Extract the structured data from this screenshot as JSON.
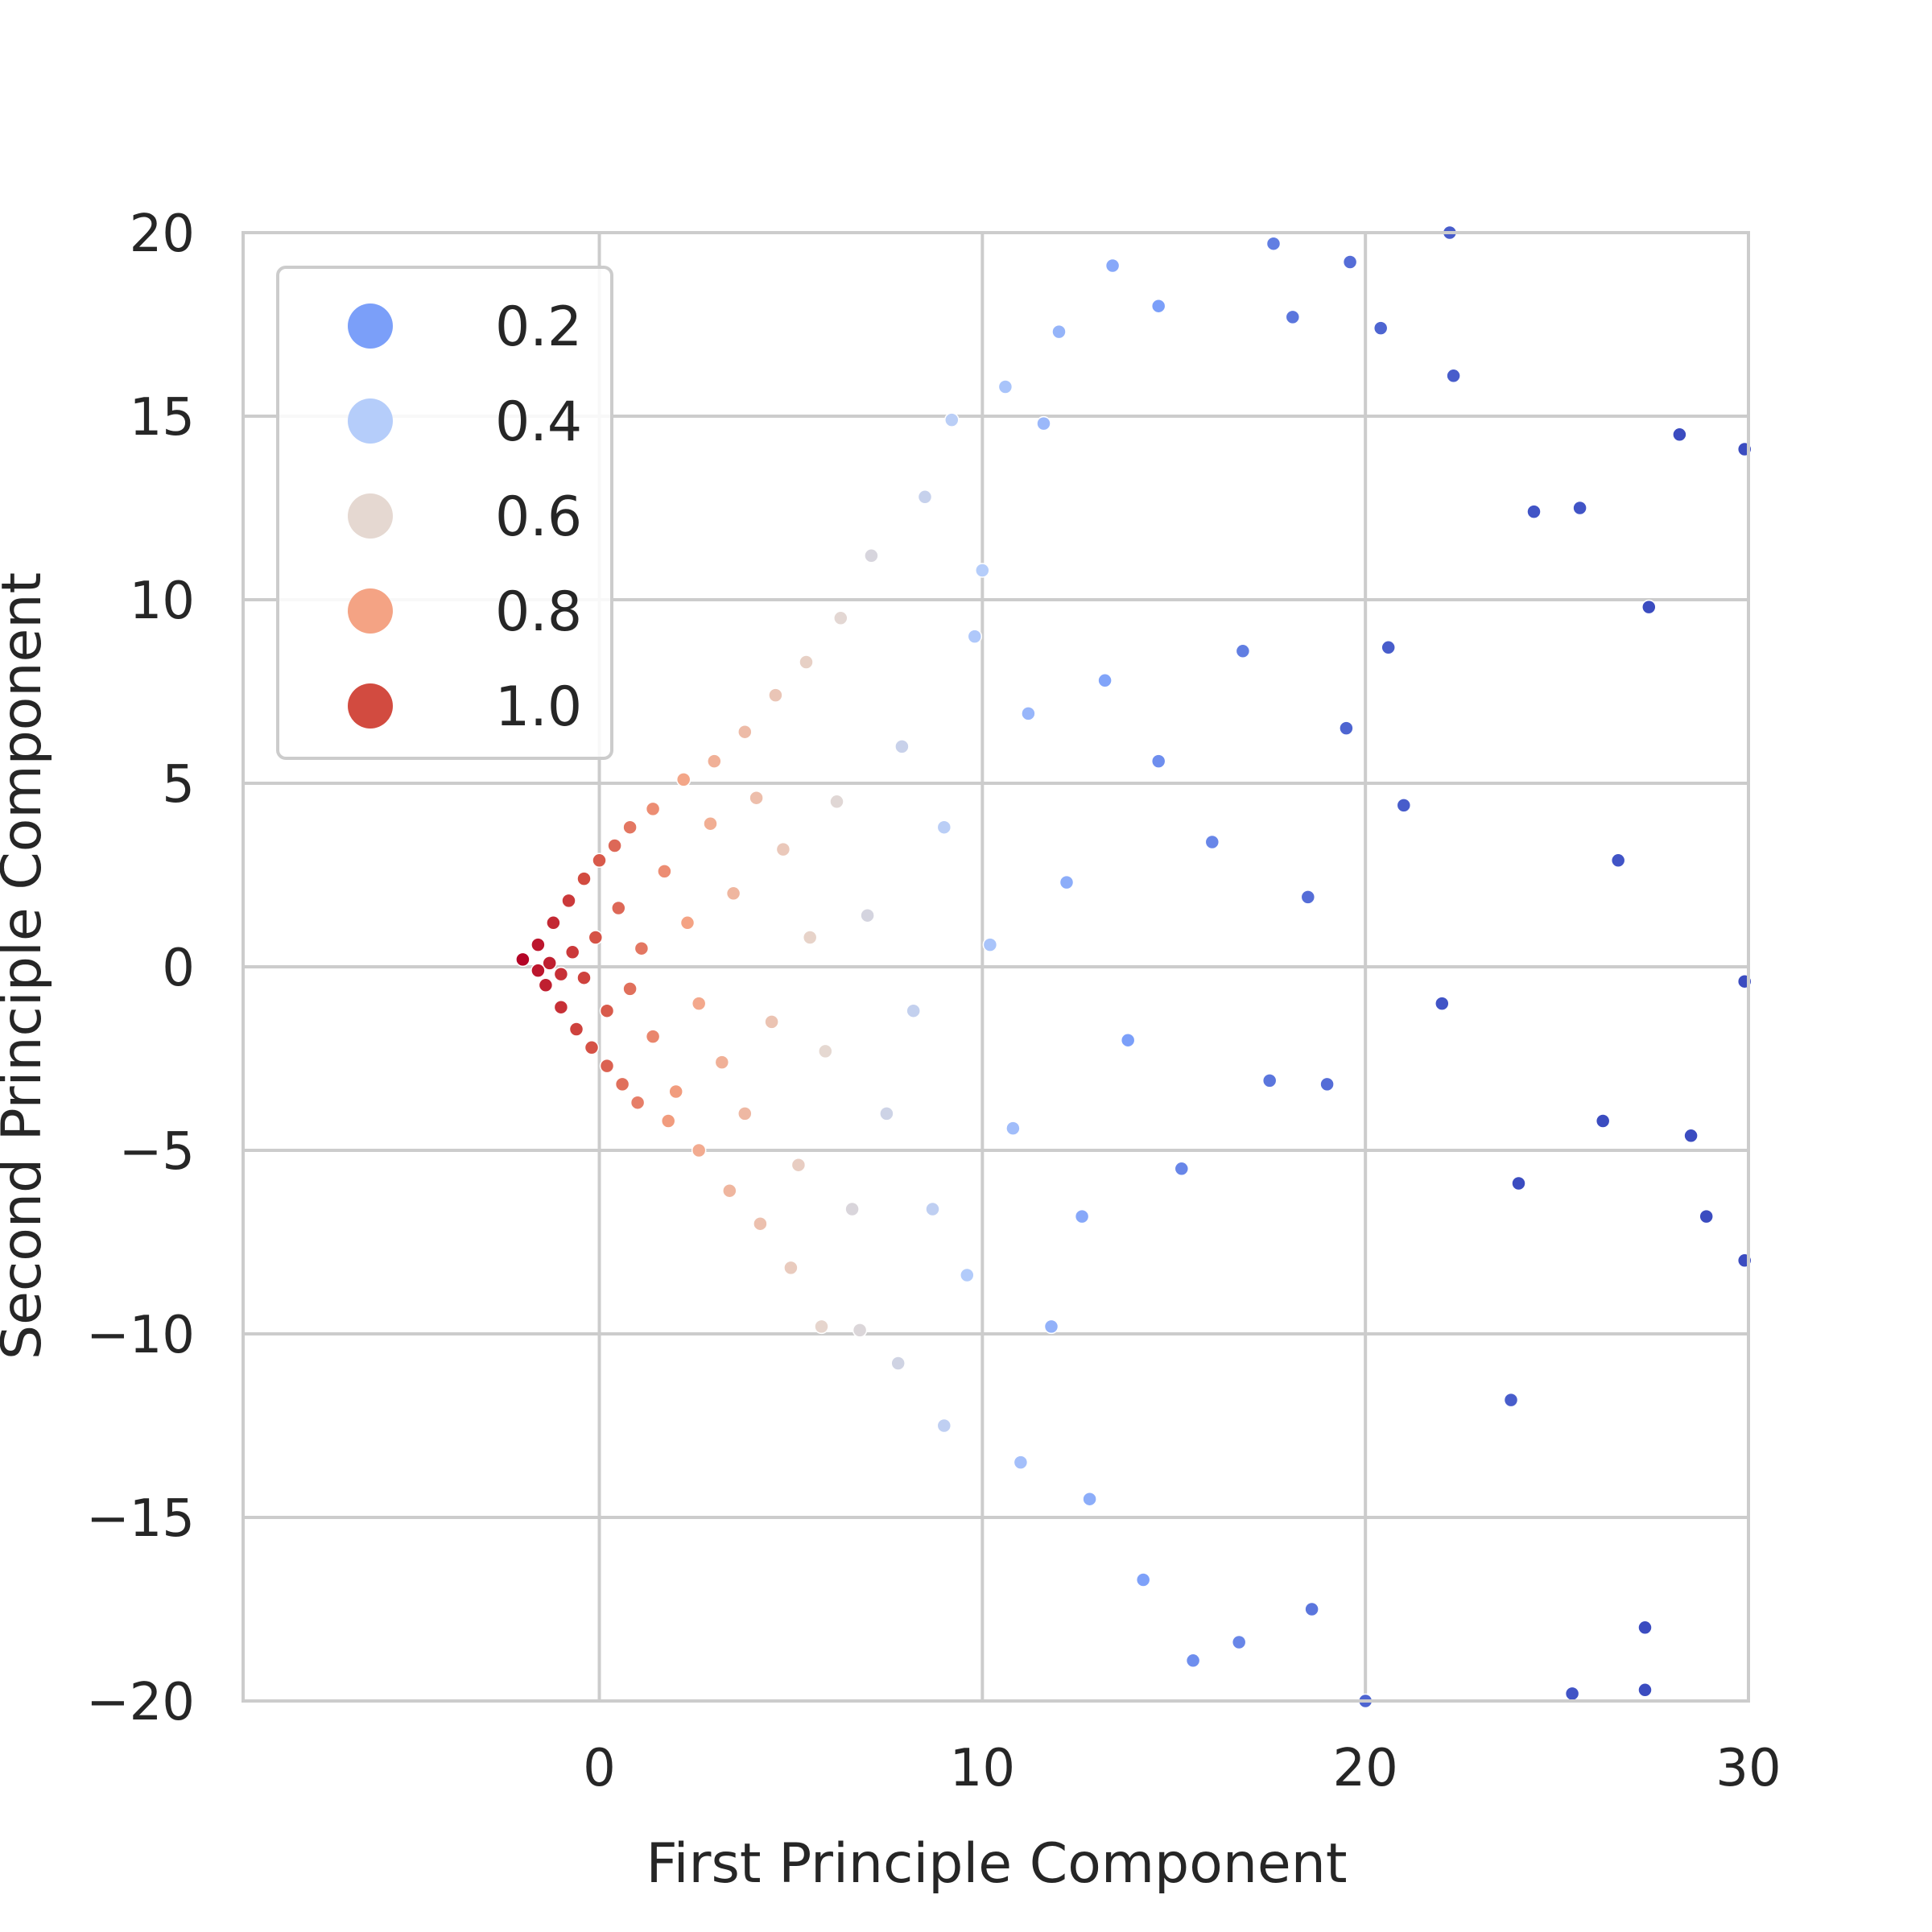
{
  "chart_data": {
    "type": "scatter",
    "title": "",
    "xlabel": "First Principle Component",
    "ylabel": "Second Principle Component",
    "xlim": [
      -9.3,
      30
    ],
    "ylim": [
      -20,
      20
    ],
    "xticks": [
      0,
      10,
      20,
      30
    ],
    "yticks": [
      20,
      15,
      10,
      5,
      0,
      -5,
      -10,
      -15,
      -20
    ],
    "xtick_labels": [
      "0",
      "10",
      "20",
      "30"
    ],
    "ytick_labels": [
      "20",
      "15",
      "10",
      "5",
      "0",
      "−5",
      "−10",
      "−15",
      "−20"
    ],
    "grid": true,
    "hue_palette": "coolwarm",
    "hue_range": [
      0.1,
      1.0
    ],
    "legend": {
      "placement": "upper-left",
      "entries": [
        {
          "label": "0.2",
          "value": 0.2,
          "color": "#7b9ff9"
        },
        {
          "label": "0.4",
          "value": 0.4,
          "color": "#b5cdfa"
        },
        {
          "label": "0.6",
          "value": 0.6,
          "color": "#e5d8d1"
        },
        {
          "label": "0.8",
          "value": 0.8,
          "color": "#f4a384"
        },
        {
          "label": "1.0",
          "value": 1.0,
          "color": "#d24b40"
        }
      ]
    },
    "points": [
      [
        -2.0,
        0.2,
        1.0
      ],
      [
        -1.6,
        0.6,
        0.98
      ],
      [
        -1.4,
        -0.5,
        0.97
      ],
      [
        -1.2,
        1.2,
        0.96
      ],
      [
        -1.0,
        -1.1,
        0.95
      ],
      [
        -0.8,
        1.8,
        0.94
      ],
      [
        -0.6,
        -1.7,
        0.93
      ],
      [
        -0.4,
        2.4,
        0.92
      ],
      [
        -0.2,
        -2.2,
        0.91
      ],
      [
        0.0,
        2.9,
        0.9
      ],
      [
        0.2,
        -2.7,
        0.89
      ],
      [
        0.4,
        3.3,
        0.88
      ],
      [
        0.6,
        -3.2,
        0.87
      ],
      [
        0.8,
        3.8,
        0.86
      ],
      [
        1.0,
        -3.7,
        0.85
      ],
      [
        1.4,
        4.3,
        0.83
      ],
      [
        1.8,
        -4.2,
        0.81
      ],
      [
        2.2,
        5.1,
        0.79
      ],
      [
        2.6,
        -5.0,
        0.77
      ],
      [
        3.0,
        5.6,
        0.75
      ],
      [
        3.4,
        -6.1,
        0.73
      ],
      [
        3.8,
        6.4,
        0.71
      ],
      [
        4.2,
        -7.0,
        0.69
      ],
      [
        4.6,
        7.4,
        0.67
      ],
      [
        5.0,
        -8.2,
        0.65
      ],
      [
        5.4,
        8.3,
        0.63
      ],
      [
        5.8,
        -9.8,
        0.61
      ],
      [
        6.3,
        9.5,
        0.59
      ],
      [
        6.8,
        -9.9,
        0.56
      ],
      [
        7.1,
        11.2,
        0.54
      ],
      [
        7.8,
        -10.8,
        0.51
      ],
      [
        8.5,
        12.8,
        0.47
      ],
      [
        9.0,
        -12.5,
        0.44
      ],
      [
        9.2,
        14.9,
        0.42
      ],
      [
        10.0,
        10.8,
        0.4
      ],
      [
        10.6,
        15.8,
        0.36
      ],
      [
        11.0,
        -13.5,
        0.34
      ],
      [
        11.6,
        14.8,
        0.31
      ],
      [
        12.0,
        17.3,
        0.29
      ],
      [
        12.8,
        -14.5,
        0.26
      ],
      [
        13.4,
        19.1,
        0.24
      ],
      [
        14.2,
        -16.7,
        0.21
      ],
      [
        14.6,
        18.0,
        0.2
      ],
      [
        15.5,
        -18.9,
        0.18
      ],
      [
        16.7,
        -18.4,
        0.17
      ],
      [
        17.6,
        19.7,
        0.16
      ],
      [
        18.1,
        17.7,
        0.15
      ],
      [
        18.6,
        -17.5,
        0.15
      ],
      [
        19.6,
        19.2,
        0.14
      ],
      [
        20.4,
        17.4,
        0.13
      ],
      [
        20.0,
        -20.0,
        0.13
      ],
      [
        22.2,
        20.0,
        0.12
      ],
      [
        22.3,
        16.1,
        0.12
      ],
      [
        23.8,
        -11.8,
        0.12
      ],
      [
        24.4,
        12.4,
        0.11
      ],
      [
        25.6,
        12.5,
        0.11
      ],
      [
        25.4,
        -19.8,
        0.11
      ],
      [
        26.6,
        2.9,
        0.11
      ],
      [
        27.4,
        9.8,
        0.1
      ],
      [
        28.2,
        14.5,
        0.1
      ],
      [
        28.5,
        -4.6,
        0.1
      ],
      [
        28.9,
        -6.8,
        0.1
      ],
      [
        29.9,
        14.1,
        0.1
      ],
      [
        29.9,
        -0.4,
        0.1
      ],
      [
        29.9,
        -8.0,
        0.1
      ],
      [
        27.3,
        -19.7,
        0.1
      ],
      [
        27.3,
        -18.0,
        0.1
      ],
      [
        26.2,
        -4.2,
        0.1
      ],
      [
        24.0,
        -5.9,
        0.1
      ],
      [
        22.0,
        -1.0,
        0.11
      ],
      [
        21.0,
        4.4,
        0.12
      ],
      [
        20.6,
        8.7,
        0.12
      ],
      [
        19.5,
        6.5,
        0.13
      ],
      [
        19.0,
        -3.2,
        0.14
      ],
      [
        18.5,
        1.9,
        0.14
      ],
      [
        17.5,
        -3.1,
        0.15
      ],
      [
        16.8,
        8.6,
        0.16
      ],
      [
        16.0,
        3.4,
        0.17
      ],
      [
        15.2,
        -5.5,
        0.17
      ],
      [
        14.6,
        5.6,
        0.18
      ],
      [
        13.8,
        -2.0,
        0.2
      ],
      [
        13.2,
        7.8,
        0.22
      ],
      [
        12.6,
        -6.8,
        0.24
      ],
      [
        12.2,
        2.3,
        0.26
      ],
      [
        11.8,
        -9.8,
        0.28
      ],
      [
        11.2,
        6.9,
        0.3
      ],
      [
        10.8,
        -4.4,
        0.33
      ],
      [
        10.2,
        0.6,
        0.36
      ],
      [
        9.8,
        9.0,
        0.38
      ],
      [
        9.6,
        -8.4,
        0.39
      ],
      [
        9.0,
        3.8,
        0.42
      ],
      [
        8.7,
        -6.6,
        0.44
      ],
      [
        8.2,
        -1.2,
        0.46
      ],
      [
        7.9,
        6.0,
        0.48
      ],
      [
        7.5,
        -4.0,
        0.5
      ],
      [
        7.0,
        1.4,
        0.53
      ],
      [
        6.6,
        -6.6,
        0.55
      ],
      [
        6.2,
        4.5,
        0.58
      ],
      [
        5.9,
        -2.3,
        0.6
      ],
      [
        5.5,
        0.8,
        0.62
      ],
      [
        5.2,
        -5.4,
        0.64
      ],
      [
        4.8,
        3.2,
        0.66
      ],
      [
        4.5,
        -1.5,
        0.68
      ],
      [
        4.1,
        4.6,
        0.7
      ],
      [
        3.8,
        -4.0,
        0.72
      ],
      [
        3.5,
        2.0,
        0.73
      ],
      [
        3.2,
        -2.6,
        0.75
      ],
      [
        2.9,
        3.9,
        0.76
      ],
      [
        2.6,
        -1.0,
        0.78
      ],
      [
        2.3,
        1.2,
        0.8
      ],
      [
        2.0,
        -3.4,
        0.81
      ],
      [
        1.7,
        2.6,
        0.83
      ],
      [
        1.4,
        -1.9,
        0.84
      ],
      [
        1.1,
        0.5,
        0.86
      ],
      [
        0.8,
        -0.6,
        0.87
      ],
      [
        0.5,
        1.6,
        0.88
      ],
      [
        0.2,
        -1.2,
        0.9
      ],
      [
        -0.1,
        0.8,
        0.91
      ],
      [
        -0.4,
        -0.3,
        0.93
      ],
      [
        -0.7,
        0.4,
        0.94
      ],
      [
        -1.0,
        -0.2,
        0.95
      ],
      [
        -1.3,
        0.1,
        0.97
      ],
      [
        -1.6,
        -0.1,
        0.98
      ]
    ]
  }
}
